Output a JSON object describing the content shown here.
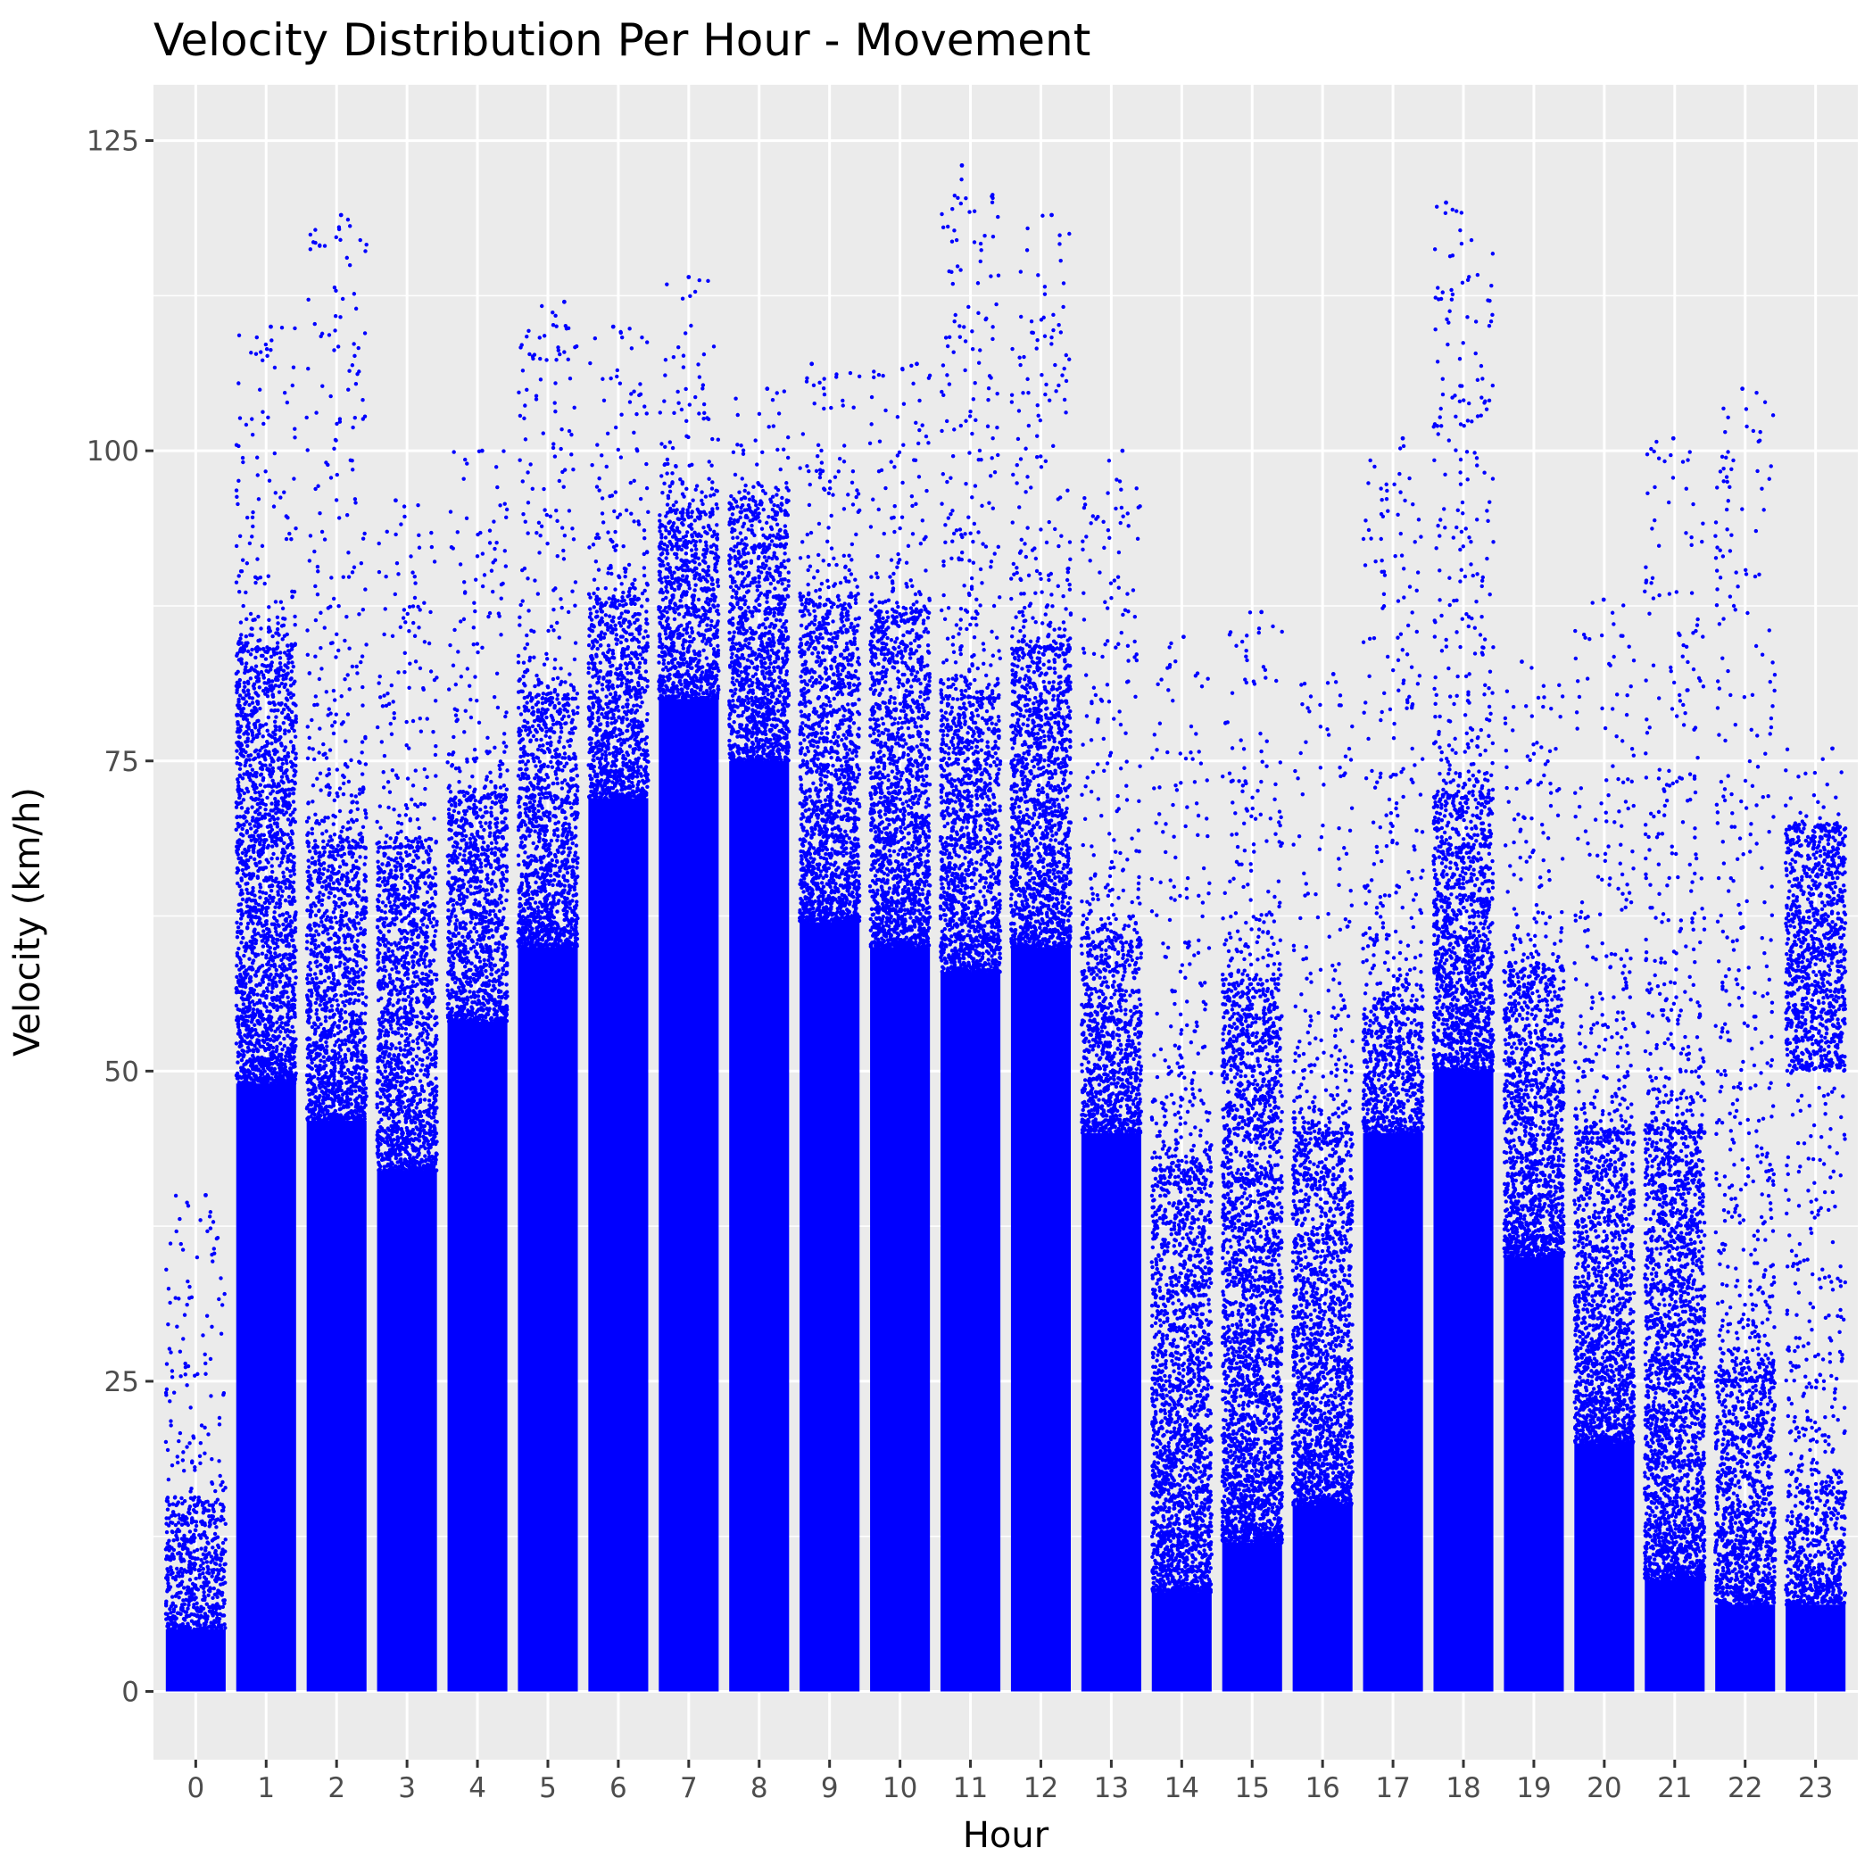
{
  "chart_data": {
    "type": "scatter",
    "title": "Velocity Distribution Per Hour - Movement",
    "xlabel": "Hour",
    "ylabel": "Velocity (km/h)",
    "x_ticks": [
      "0",
      "1",
      "2",
      "3",
      "4",
      "5",
      "6",
      "7",
      "8",
      "9",
      "10",
      "11",
      "12",
      "13",
      "14",
      "15",
      "16",
      "17",
      "18",
      "19",
      "20",
      "21",
      "22",
      "23"
    ],
    "y_ticks": [
      0,
      25,
      50,
      75,
      100,
      125
    ],
    "ylim": [
      -5.5,
      129.5
    ],
    "xlim": [
      -0.6,
      23.6
    ],
    "jitter_width": 0.85,
    "grid": true,
    "legend": "none",
    "point_color": "#0000ff",
    "panel_color": "#ebebeb",
    "grid_color": "#ffffff",
    "series": [
      {
        "hour": 0,
        "dense_max": 5,
        "medium_max": 15,
        "max": 40
      },
      {
        "hour": 1,
        "dense_max": 49,
        "medium_max": 84,
        "max": 110
      },
      {
        "hour": 2,
        "dense_max": 46,
        "medium_max": 68,
        "max": 119
      },
      {
        "hour": 3,
        "dense_max": 42,
        "medium_max": 68,
        "max": 96
      },
      {
        "hour": 4,
        "dense_max": 54,
        "medium_max": 72,
        "max": 100
      },
      {
        "hour": 5,
        "dense_max": 60,
        "medium_max": 80,
        "max": 112
      },
      {
        "hour": 6,
        "dense_max": 72,
        "medium_max": 88,
        "max": 110
      },
      {
        "hour": 7,
        "dense_max": 80,
        "medium_max": 95,
        "max": 114
      },
      {
        "hour": 8,
        "dense_max": 75,
        "medium_max": 96,
        "max": 105
      },
      {
        "hour": 9,
        "dense_max": 62,
        "medium_max": 88,
        "max": 107
      },
      {
        "hour": 10,
        "dense_max": 60,
        "medium_max": 87,
        "max": 107
      },
      {
        "hour": 11,
        "dense_max": 58,
        "medium_max": 80,
        "max": 123
      },
      {
        "hour": 12,
        "dense_max": 60,
        "medium_max": 84,
        "max": 119
      },
      {
        "hour": 13,
        "dense_max": 45,
        "medium_max": 60,
        "max": 100
      },
      {
        "hour": 14,
        "dense_max": 8,
        "medium_max": 42,
        "max": 85
      },
      {
        "hour": 15,
        "dense_max": 12,
        "medium_max": 57,
        "max": 87
      },
      {
        "hour": 16,
        "dense_max": 15,
        "medium_max": 45,
        "max": 82
      },
      {
        "hour": 17,
        "dense_max": 45,
        "medium_max": 55,
        "max": 101
      },
      {
        "hour": 18,
        "dense_max": 50,
        "medium_max": 72,
        "max": 120
      },
      {
        "hour": 19,
        "dense_max": 35,
        "medium_max": 58,
        "max": 83
      },
      {
        "hour": 20,
        "dense_max": 20,
        "medium_max": 45,
        "max": 88
      },
      {
        "hour": 21,
        "dense_max": 9,
        "medium_max": 45,
        "max": 101
      },
      {
        "hour": 22,
        "dense_max": 7,
        "medium_max": 25,
        "max": 105
      },
      {
        "hour": 23,
        "dense_max": 7,
        "medium_max": 16,
        "max": 76,
        "upper_band": [
          50,
          70
        ]
      }
    ]
  }
}
